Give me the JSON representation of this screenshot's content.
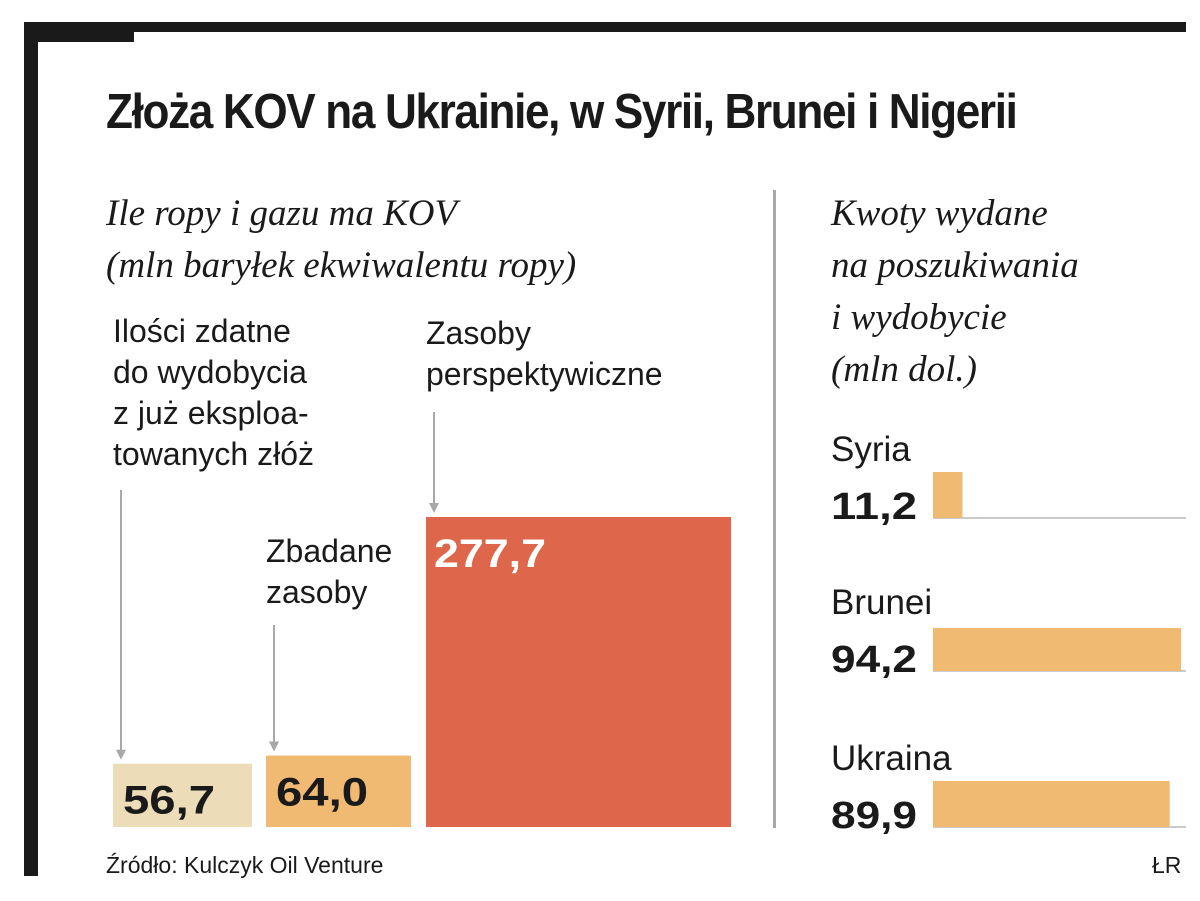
{
  "title": "Złoża KOV na Ukrainie, w Syrii, Brunei i Nigerii",
  "source": "Źródło: Kulczyk Oil Venture",
  "credit": "ŁR",
  "colors": {
    "light": "#ecdcb8",
    "medium": "#f0ba73",
    "accent": "#dd664b",
    "dark": "#1a1a1a",
    "gray": "#a8a8a8"
  },
  "chart_data": [
    {
      "type": "bar",
      "title": "Ile ropy i gazu ma KOV",
      "subtitle": "(mln baryłek ekwiwalentu ropy)",
      "categories": [
        "Ilości zdatne do wydobycia z już eksploatowanych złóż",
        "Zbadane zasoby",
        "Zasoby perspektywiczne"
      ],
      "category_label_lines": [
        [
          "Ilości zdatne",
          "do wydobycia",
          "z już eksploa-",
          "towanych złóż"
        ],
        [
          "Zbadane",
          "zasoby"
        ],
        [
          "Zasoby",
          "perspektywiczne"
        ]
      ],
      "values": [
        56.7,
        64.0,
        277.7
      ],
      "value_labels": [
        "56,7",
        "64,0",
        "277,7"
      ],
      "ylim": [
        0,
        277.7
      ]
    },
    {
      "type": "bar",
      "orientation": "horizontal",
      "title_lines": [
        "Kwoty wydane",
        "na poszukiwania",
        "i wydobycie",
        "(mln dol.)"
      ],
      "categories": [
        "Syria",
        "Brunei",
        "Ukraina"
      ],
      "values": [
        11.2,
        94.2,
        89.9
      ],
      "value_labels": [
        "11,2",
        "94,2",
        "89,9"
      ],
      "xlim": [
        0,
        94.2
      ]
    }
  ]
}
